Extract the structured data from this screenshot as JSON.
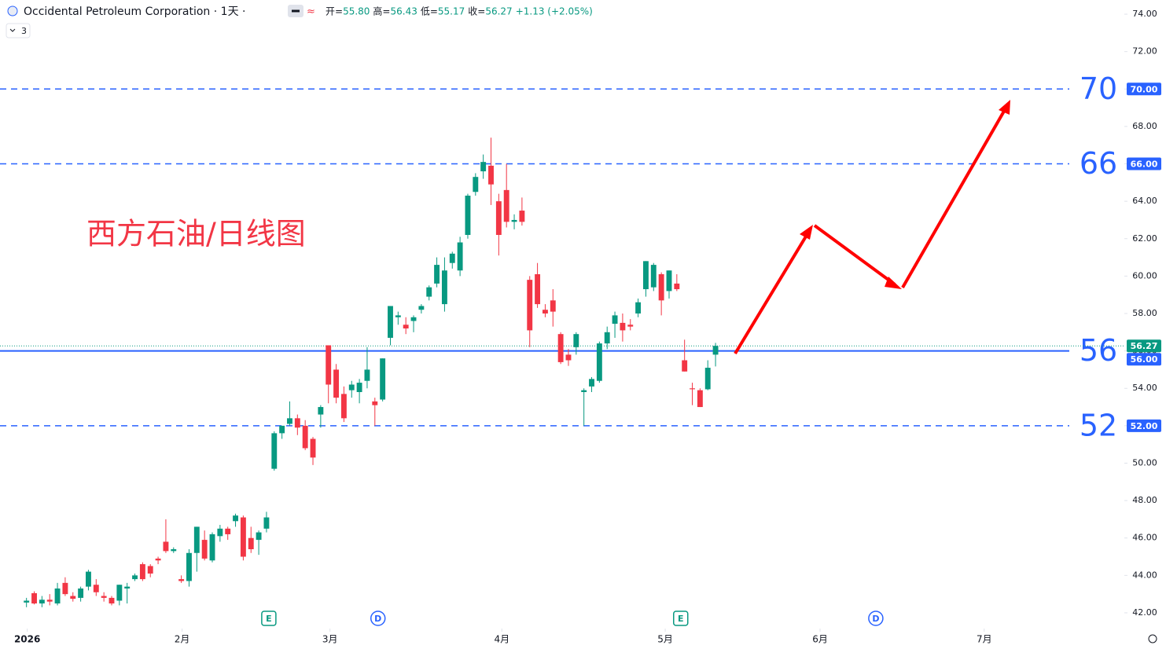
{
  "header": {
    "symbol": "Occidental Petroleum Corporation · 1天 ·",
    "indicators": "3",
    "ohlc": [
      {
        "label": "开=",
        "value": "55.80"
      },
      {
        "label": "高=",
        "value": "56.43"
      },
      {
        "label": "低=",
        "value": "55.17"
      },
      {
        "label": "收=",
        "value": "56.27"
      }
    ],
    "change": "+1.13 (+2.05%)"
  },
  "annotation": "西方石油/日线图",
  "chart_data": {
    "type": "candlestick",
    "x": [
      2,
      3,
      4,
      5,
      6,
      7,
      8,
      9,
      10,
      11,
      12,
      13,
      14,
      15,
      16,
      17,
      18,
      19,
      20,
      21,
      22,
      23,
      24,
      25,
      26,
      27,
      28,
      29,
      30,
      31,
      32,
      33,
      34,
      35,
      36,
      37,
      38,
      39,
      40,
      41,
      42,
      43,
      44,
      45,
      46,
      47,
      48,
      49,
      50,
      51,
      52,
      53,
      54,
      55,
      56,
      57,
      58,
      59,
      60,
      61,
      62,
      63,
      64,
      65,
      66,
      67,
      68,
      69,
      70,
      71,
      72,
      73,
      74,
      75,
      76,
      77,
      78,
      79,
      80,
      81,
      82,
      83,
      84,
      85,
      86,
      87,
      88,
      89,
      90,
      91
    ],
    "open": [
      42.55,
      43.05,
      42.5,
      42.7,
      42.5,
      43.6,
      42.9,
      42.8,
      43.4,
      43.5,
      42.9,
      42.8,
      42.65,
      43.3,
      43.8,
      44.6,
      44.5,
      44.9,
      45.8,
      45.3,
      43.8,
      43.7,
      45.2,
      45.9,
      44.8,
      46.1,
      46.5,
      46.9,
      47.1,
      46.0,
      45.9,
      46.5,
      49.7,
      51.6,
      52.1,
      52.4,
      52.0,
      51.3,
      52.6,
      56.3,
      55.0,
      53.7,
      53.9,
      53.8,
      54.4,
      53.3,
      53.4,
      56.7,
      57.8,
      57.4,
      57.6,
      58.2,
      58.9,
      59.6,
      58.5,
      60.7,
      60.3,
      62.2,
      64.5,
      65.6,
      65.9,
      64.0,
      64.6,
      62.9,
      63.5,
      59.8,
      60.1,
      58.2,
      58.7,
      56.9,
      55.8,
      56.2,
      53.8,
      54.1,
      54.4,
      56.4,
      57.45,
      57.5,
      57.4,
      58.0,
      59.3,
      59.4,
      60.1,
      59.2,
      59.6,
      55.5,
      54.0,
      53.9,
      53.95,
      55.8
    ],
    "high": [
      42.8,
      43.15,
      42.9,
      43.0,
      43.6,
      43.9,
      43.1,
      43.4,
      44.3,
      43.8,
      43.1,
      42.9,
      43.5,
      43.6,
      44.1,
      44.7,
      44.6,
      45.0,
      47.0,
      45.5,
      44.0,
      45.4,
      46.6,
      46.4,
      46.3,
      46.7,
      46.6,
      47.3,
      47.2,
      46.6,
      46.4,
      47.4,
      51.7,
      52.0,
      53.3,
      52.6,
      52.3,
      51.4,
      53.1,
      56.3,
      55.3,
      54.1,
      54.4,
      54.5,
      56.2,
      53.5,
      55.6,
      58.4,
      58.1,
      57.8,
      57.9,
      58.5,
      59.5,
      61.0,
      61.0,
      61.3,
      62.1,
      64.4,
      65.5,
      66.5,
      67.4,
      64.4,
      66.0,
      63.3,
      64.2,
      60.0,
      60.7,
      58.5,
      59.3,
      57.0,
      56.1,
      57.0,
      54.0,
      54.6,
      56.5,
      57.3,
      58.1,
      58.0,
      57.7,
      58.8,
      60.8,
      60.7,
      60.2,
      60.3,
      60.1,
      56.6,
      54.3,
      54.0,
      55.5,
      56.43
    ],
    "low": [
      42.3,
      42.45,
      42.3,
      42.4,
      42.4,
      42.9,
      42.6,
      42.6,
      43.2,
      42.9,
      42.6,
      42.4,
      42.4,
      42.5,
      43.7,
      43.7,
      43.9,
      44.6,
      45.2,
      45.2,
      43.6,
      43.4,
      44.2,
      44.8,
      44.7,
      45.8,
      45.9,
      46.6,
      44.8,
      45.2,
      45.1,
      46.3,
      49.6,
      51.3,
      52.0,
      51.5,
      50.7,
      49.9,
      51.9,
      53.2,
      53.2,
      52.2,
      53.5,
      53.2,
      54.0,
      52.0,
      53.3,
      56.3,
      57.4,
      56.9,
      57.0,
      58.0,
      58.7,
      59.4,
      58.1,
      60.4,
      60.0,
      62.0,
      64.3,
      65.2,
      63.8,
      61.1,
      62.6,
      62.5,
      62.7,
      56.2,
      58.3,
      57.8,
      57.3,
      55.3,
      55.2,
      55.8,
      52.0,
      53.8,
      54.3,
      56.1,
      56.7,
      56.5,
      57.1,
      57.8,
      58.9,
      59.2,
      57.9,
      58.8,
      59.2,
      54.9,
      53.1,
      53.0,
      53.9,
      55.17
    ],
    "close": [
      42.65,
      42.5,
      42.7,
      42.6,
      43.3,
      43.0,
      42.75,
      43.3,
      44.2,
      43.1,
      42.8,
      42.5,
      43.5,
      43.4,
      44.0,
      43.8,
      44.1,
      44.8,
      45.3,
      45.4,
      43.7,
      45.2,
      46.6,
      44.9,
      46.2,
      46.5,
      46.2,
      47.2,
      45.0,
      45.4,
      46.3,
      47.1,
      51.6,
      52.0,
      52.4,
      51.9,
      50.8,
      50.3,
      53.0,
      54.2,
      53.5,
      52.4,
      54.2,
      54.3,
      55.0,
      53.1,
      55.6,
      58.4,
      57.9,
      57.2,
      57.8,
      58.4,
      59.4,
      60.6,
      60.3,
      61.2,
      61.8,
      64.3,
      65.3,
      66.1,
      64.9,
      62.2,
      62.9,
      63.0,
      62.9,
      57.1,
      58.5,
      58.0,
      58.1,
      55.4,
      55.5,
      56.9,
      53.9,
      54.5,
      56.4,
      57.0,
      57.9,
      57.1,
      57.3,
      58.6,
      60.8,
      60.6,
      58.7,
      60.3,
      59.3,
      54.9,
      53.95,
      53.0,
      55.1,
      56.27
    ],
    "up_color": "#089981",
    "down_color": "#f23645",
    "xlim": [
      -1.42,
      143.8
    ],
    "ylim": [
      41.2,
      74.8
    ],
    "xticks": [
      {
        "value": 2.1,
        "label": "2026"
      },
      {
        "value": 22.1,
        "label": "2月"
      },
      {
        "value": 41.2,
        "label": "3月"
      },
      {
        "value": 63.4,
        "label": "4月"
      },
      {
        "value": 84.5,
        "label": "5月"
      },
      {
        "value": 104.5,
        "label": "6月"
      },
      {
        "value": 125.7,
        "label": "7月"
      }
    ],
    "yticks": [
      {
        "value": 42,
        "label": "42.00"
      },
      {
        "value": 44,
        "label": "44.00"
      },
      {
        "value": 46,
        "label": "46.00"
      },
      {
        "value": 48,
        "label": "48.00"
      },
      {
        "value": 50,
        "label": "50.00"
      },
      {
        "value": 52,
        "label": "52.00"
      },
      {
        "value": 54,
        "label": "54.00"
      },
      {
        "value": 56,
        "label": "56.00"
      },
      {
        "value": 58,
        "label": "58.00"
      },
      {
        "value": 60,
        "label": "60.00"
      },
      {
        "value": 62,
        "label": "62.00"
      },
      {
        "value": 64,
        "label": "64.00"
      },
      {
        "value": 66,
        "label": "66.00"
      },
      {
        "value": 68,
        "label": "68.00"
      },
      {
        "value": 70,
        "label": "70.00"
      },
      {
        "value": 72,
        "label": "72.00"
      },
      {
        "value": 74,
        "label": "74.00"
      }
    ],
    "levels": [
      {
        "value": 70,
        "tag": "70.00",
        "style": "dashed"
      },
      {
        "value": 66,
        "tag": "66.00",
        "style": "dashed"
      },
      {
        "value": 56,
        "tag": "56.00",
        "style": "solid"
      },
      {
        "value": 52,
        "tag": "52.00",
        "style": "dashed"
      }
    ],
    "level_color": "#2962ff",
    "last_price": {
      "value": 56.27,
      "label": "56.27"
    },
    "events": [
      {
        "x": 33.3,
        "label": "E",
        "color": "#089981"
      },
      {
        "x": 47.4,
        "label": "D",
        "color": "#2962ff"
      },
      {
        "x": 86.5,
        "label": "E",
        "color": "#089981"
      },
      {
        "x": 111.7,
        "label": "D",
        "color": "#2962ff"
      }
    ]
  }
}
